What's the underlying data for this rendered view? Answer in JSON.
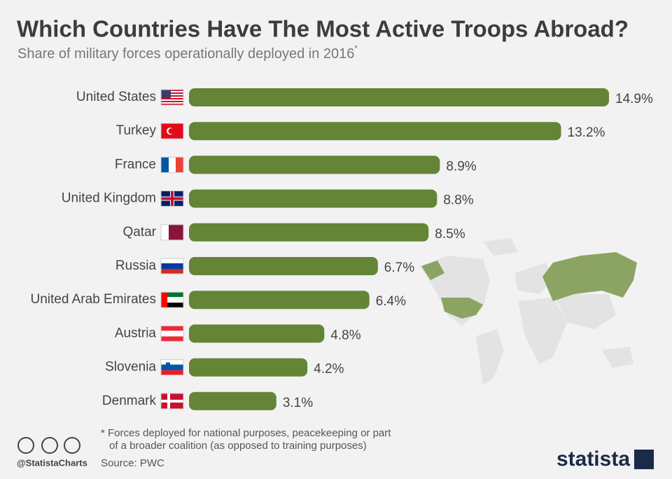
{
  "chart_data": {
    "type": "bar",
    "title": "Which Countries Have The Most Active Troops Abroad?",
    "subtitle": "Share of military forces operationally deployed in 2016",
    "subtitle_note": "*",
    "categories": [
      "United States",
      "Turkey",
      "France",
      "United Kingdom",
      "Qatar",
      "Russia",
      "United Arab Emirates",
      "Austria",
      "Slovenia",
      "Denmark"
    ],
    "values": [
      14.9,
      13.2,
      8.9,
      8.8,
      8.5,
      6.7,
      6.4,
      4.8,
      4.2,
      3.1
    ],
    "value_labels": [
      "14.9%",
      "13.2%",
      "8.9%",
      "8.8%",
      "8.5%",
      "6.7%",
      "6.4%",
      "4.8%",
      "4.2%",
      "3.1%"
    ],
    "color": "#648535",
    "footnote": [
      "* Forces deployed for national purposes, peacekeeping or part",
      "of a broader coalition (as opposed to training purposes)"
    ],
    "credit": "@StatistaCharts",
    "source": "Source: PWC",
    "logo": "statista"
  }
}
